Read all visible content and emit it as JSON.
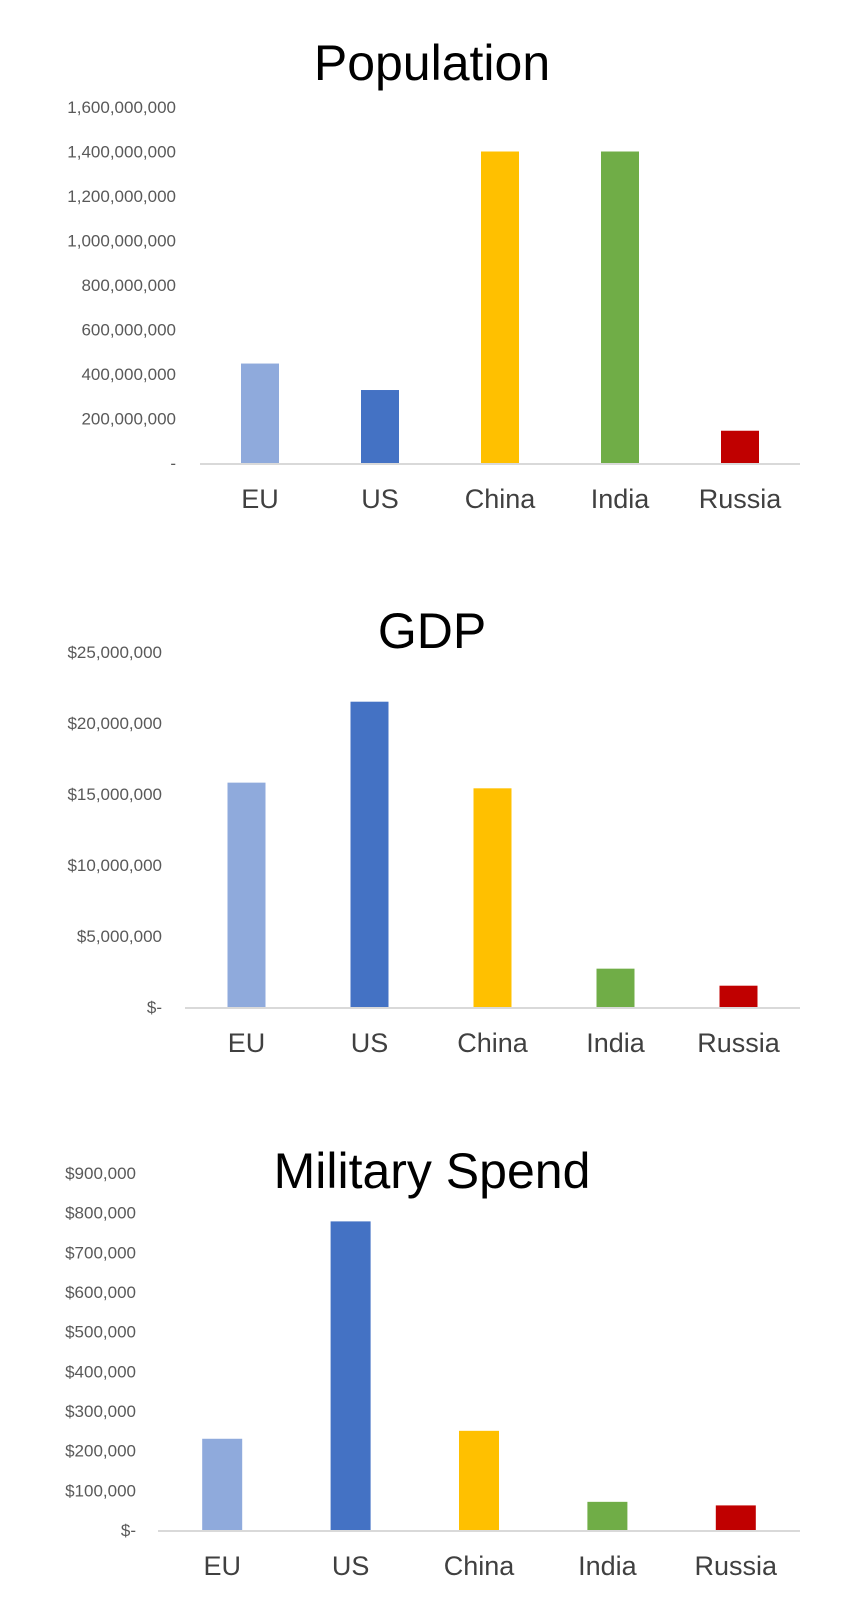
{
  "chart_data": [
    {
      "type": "bar",
      "title": "Population",
      "categories": [
        "EU",
        "US",
        "China",
        "India",
        "Russia"
      ],
      "values": [
        447000000,
        328000000,
        1400000000,
        1400000000,
        145000000
      ],
      "colors": [
        "#8FAADC",
        "#4472C4",
        "#FFC000",
        "#70AD47",
        "#C00000"
      ],
      "ylim": [
        0,
        1600000000
      ],
      "yticks": [
        0,
        200000000,
        400000000,
        600000000,
        800000000,
        1000000000,
        1200000000,
        1400000000,
        1600000000
      ],
      "ytick_labels": [
        "-",
        "200,000,000",
        "400,000,000",
        "600,000,000",
        "800,000,000",
        "1,000,000,000",
        "1,200,000,000",
        "1,400,000,000",
        "1,600,000,000"
      ],
      "xlabel": "",
      "ylabel": "",
      "grid": false,
      "legend": "none"
    },
    {
      "type": "bar",
      "title": "GDP",
      "categories": [
        "EU",
        "US",
        "China",
        "India",
        "Russia"
      ],
      "values": [
        15800000,
        21500000,
        15400000,
        2700000,
        1500000
      ],
      "colors": [
        "#8FAADC",
        "#4472C4",
        "#FFC000",
        "#70AD47",
        "#C00000"
      ],
      "ylim": [
        0,
        25000000
      ],
      "yticks": [
        0,
        5000000,
        10000000,
        15000000,
        20000000,
        25000000
      ],
      "ytick_labels": [
        "$-",
        "$5,000,000",
        "$10,000,000",
        "$15,000,000",
        "$20,000,000",
        "$25,000,000"
      ],
      "xlabel": "",
      "ylabel": "",
      "grid": false,
      "legend": "none"
    },
    {
      "type": "bar",
      "title": "Military Spend",
      "categories": [
        "EU",
        "US",
        "China",
        "India",
        "Russia"
      ],
      "values": [
        230000,
        778000,
        250000,
        71000,
        62000
      ],
      "colors": [
        "#8FAADC",
        "#4472C4",
        "#FFC000",
        "#70AD47",
        "#C00000"
      ],
      "ylim": [
        0,
        900000
      ],
      "yticks": [
        0,
        100000,
        200000,
        300000,
        400000,
        500000,
        600000,
        700000,
        800000,
        900000
      ],
      "ytick_labels": [
        "$-",
        "$100,000",
        "$200,000",
        "$300,000",
        "$400,000",
        "$500,000",
        "$600,000",
        "$700,000",
        "$800,000",
        "$900,000"
      ],
      "xlabel": "",
      "ylabel": "",
      "grid": false,
      "legend": "none"
    }
  ]
}
